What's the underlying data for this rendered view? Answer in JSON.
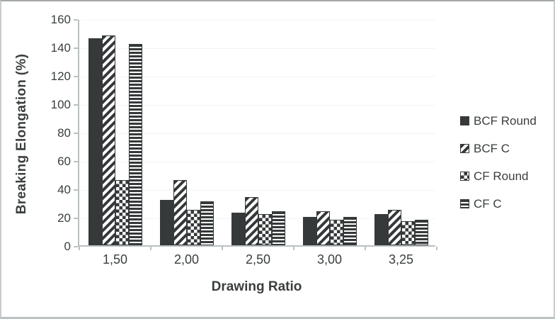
{
  "chart_data": {
    "type": "bar",
    "title": "",
    "xlabel": "Drawing Ratio",
    "ylabel": "Breaking Elongation (%)",
    "categories": [
      "1,50",
      "2,00",
      "2,50",
      "3,00",
      "3,25"
    ],
    "series": [
      {
        "name": "BCF Round",
        "pattern": "solid",
        "values": [
          146,
          32,
          23,
          20,
          22
        ]
      },
      {
        "name": "BCF C",
        "pattern": "diag",
        "values": [
          148,
          46,
          34,
          24,
          25
        ]
      },
      {
        "name": "CF Round",
        "pattern": "check",
        "values": [
          46,
          25,
          22,
          18,
          17
        ]
      },
      {
        "name": "CF C",
        "pattern": "hlines",
        "values": [
          142,
          31,
          24,
          20,
          18
        ]
      }
    ],
    "ylim": [
      0,
      160
    ],
    "ytick_step": 20,
    "yticks": [
      "0",
      "20",
      "40",
      "60",
      "80",
      "100",
      "120",
      "140",
      "160"
    ],
    "grid": true,
    "legend_position": "right"
  },
  "colors": {
    "bar": "#35393a",
    "axis": "#b9c1c3",
    "text": "#3a3e3f",
    "grid": "#f4f4f4",
    "background": "#ffffff"
  }
}
